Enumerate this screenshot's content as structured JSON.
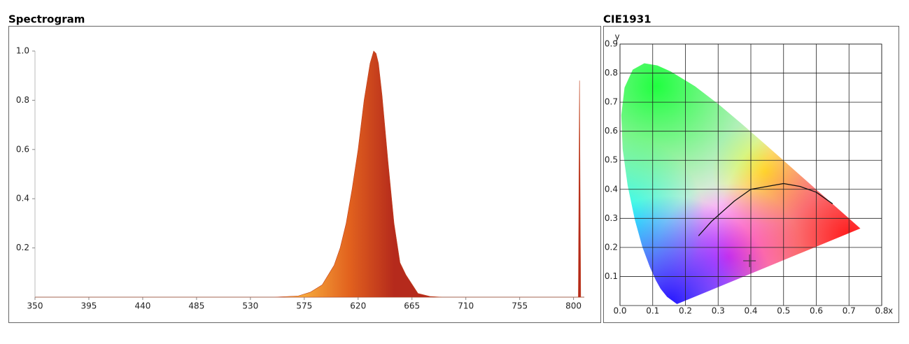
{
  "chart_data": [
    {
      "type": "area",
      "title": "Spectrogram",
      "x": [
        350,
        400,
        500,
        550,
        570,
        580,
        590,
        600,
        605,
        610,
        615,
        620,
        625,
        630,
        633,
        635,
        637,
        640,
        645,
        650,
        655,
        660,
        670,
        680,
        690,
        700,
        800,
        804,
        805,
        806,
        809
      ],
      "values": [
        0,
        0,
        0,
        0,
        0.005,
        0.02,
        0.05,
        0.13,
        0.2,
        0.3,
        0.44,
        0.6,
        0.8,
        0.95,
        1.0,
        0.99,
        0.95,
        0.82,
        0.55,
        0.3,
        0.14,
        0.09,
        0.015,
        0.003,
        0,
        0,
        0,
        0,
        0.88,
        0,
        0
      ],
      "colors": [
        "#f5a83c",
        "#e2621e",
        "#b52a1c"
      ],
      "xlim": [
        350,
        809
      ],
      "ylim": [
        0,
        1
      ],
      "xticks": [
        350,
        395,
        440,
        485,
        530,
        575,
        620,
        665,
        710,
        755,
        800
      ],
      "yticks": [
        0.2,
        0.4,
        0.6,
        0.8,
        {
          "value": 1,
          "label": "1.0"
        }
      ]
    },
    {
      "type": "cie",
      "title": "CIE1931",
      "xlabel": "x",
      "ylabel": "y",
      "xlim": [
        0,
        0.8
      ],
      "ylim": [
        0,
        0.9
      ],
      "xticks": [
        {
          "value": 0,
          "label": "0.0"
        },
        0.1,
        0.2,
        0.3,
        0.4,
        0.5,
        0.6,
        0.7,
        0.8
      ],
      "yticks": [
        0.1,
        0.2,
        0.3,
        0.4,
        0.5,
        0.6,
        0.7,
        0.8,
        0.9
      ],
      "grid": true,
      "locus": {
        "x": [
          0.1741,
          0.144,
          0.1241,
          0.1096,
          0.0913,
          0.0687,
          0.0454,
          0.0235,
          0.0082,
          0.0039,
          0.0139,
          0.0389,
          0.0743,
          0.1142,
          0.1547,
          0.2296,
          0.3016,
          0.3731,
          0.4441,
          0.5125,
          0.5752,
          0.627,
          0.6915,
          0.719,
          0.7347
        ],
        "y": [
          0.005,
          0.0297,
          0.0578,
          0.0868,
          0.1327,
          0.2007,
          0.295,
          0.4127,
          0.5384,
          0.6548,
          0.7502,
          0.812,
          0.8338,
          0.8262,
          0.8059,
          0.7543,
          0.6923,
          0.6245,
          0.5547,
          0.4866,
          0.4242,
          0.3725,
          0.3083,
          0.2809,
          0.2653
        ]
      },
      "planckian": {
        "x": [
          0.24,
          0.28,
          0.31,
          0.35,
          0.4,
          0.45,
          0.5,
          0.55,
          0.6,
          0.65
        ],
        "y": [
          0.24,
          0.29,
          0.32,
          0.36,
          0.4,
          0.41,
          0.42,
          0.41,
          0.39,
          0.35
        ]
      },
      "point": {
        "x": 0.396,
        "y": 0.154
      }
    }
  ]
}
